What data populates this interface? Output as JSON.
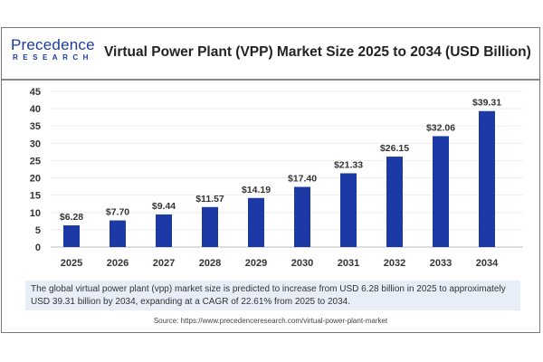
{
  "header": {
    "logo_top": "Precedence",
    "logo_bottom": "RESEARCH",
    "title": "Virtual Power Plant (VPP) Market Size 2025 to 2034 (USD Billion)"
  },
  "chart_data": {
    "type": "bar",
    "title": "Virtual Power Plant (VPP) Market Size 2025 to 2034 (USD Billion)",
    "categories": [
      "2025",
      "2026",
      "2027",
      "2028",
      "2029",
      "2030",
      "2031",
      "2032",
      "2033",
      "2034"
    ],
    "values": [
      6.28,
      7.7,
      9.44,
      11.57,
      14.19,
      17.4,
      21.33,
      26.15,
      32.06,
      39.31
    ],
    "data_labels": [
      "$6.28",
      "$7.70",
      "$9.44",
      "$11.57",
      "$14.19",
      "$17.40",
      "$21.33",
      "$26.15",
      "$32.06",
      "$39.31"
    ],
    "yticks": [
      "0",
      "5",
      "10",
      "15",
      "20",
      "25",
      "30",
      "35",
      "40",
      "45"
    ],
    "ylim": [
      0,
      45
    ],
    "grid": true,
    "bar_color": "#1b3aa6"
  },
  "summary": "The global virtual power plant (vpp) market size is predicted to increase from USD 6.28 billion in 2025 to approximately USD 39.31 billion by 2034, expanding at a CAGR of 22.61% from 2025 to 2034.",
  "source": "Source: https://www.precedenceresearch.com/virtual-power-plant-market"
}
